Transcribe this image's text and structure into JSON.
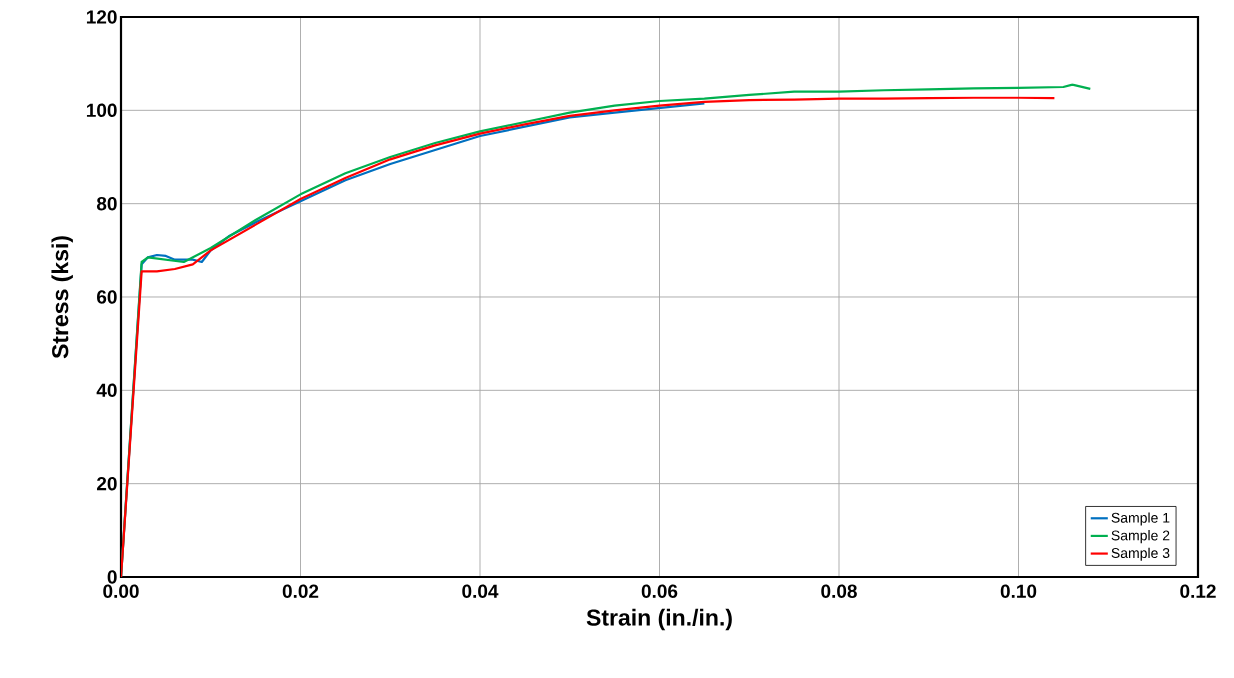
{
  "chart_data": {
    "type": "line",
    "xlabel": "Strain (in./in.)",
    "ylabel": "Stress (ksi)",
    "xlim": [
      0,
      0.12
    ],
    "ylim": [
      0,
      120
    ],
    "xticks": [
      {
        "value": 0,
        "label": "0.00"
      },
      {
        "value": 0.02,
        "label": "0.02"
      },
      {
        "value": 0.04,
        "label": "0.04"
      },
      {
        "value": 0.06,
        "label": "0.06"
      },
      {
        "value": 0.08,
        "label": "0.08"
      },
      {
        "value": 0.1,
        "label": "0.10"
      },
      {
        "value": 0.12,
        "label": "0.12"
      }
    ],
    "yticks": [
      0,
      20,
      40,
      60,
      80,
      100,
      120
    ],
    "grid": true,
    "legend": "bottom right",
    "marker": "none",
    "line_style": "solid",
    "series": [
      {
        "name": "Sample 1",
        "color": "#0070c0",
        "x": [
          0,
          0.0023,
          0.003,
          0.004,
          0.005,
          0.006,
          0.008,
          0.009,
          0.01,
          0.012,
          0.015,
          0.02,
          0.025,
          0.03,
          0.035,
          0.04,
          0.045,
          0.05,
          0.055,
          0.06,
          0.065
        ],
        "values": [
          0,
          67,
          68.5,
          69,
          68.8,
          68,
          68,
          67.5,
          70,
          73,
          76,
          80.5,
          85,
          88.5,
          91.5,
          94.5,
          96.5,
          98.5,
          99.5,
          100.5,
          101.5
        ]
      },
      {
        "name": "Sample 2",
        "color": "#00b050",
        "x": [
          0,
          0.0023,
          0.003,
          0.005,
          0.007,
          0.01,
          0.015,
          0.02,
          0.025,
          0.03,
          0.035,
          0.04,
          0.045,
          0.05,
          0.055,
          0.06,
          0.065,
          0.07,
          0.075,
          0.08,
          0.085,
          0.09,
          0.095,
          0.1,
          0.105,
          0.106,
          0.108
        ],
        "values": [
          0,
          67.5,
          68.5,
          68,
          67.5,
          70.5,
          76.5,
          82,
          86.5,
          90,
          93,
          95.5,
          97.5,
          99.5,
          101,
          102,
          102.5,
          103.3,
          104,
          104,
          104.3,
          104.5,
          104.7,
          104.8,
          105,
          105.5,
          104.6
        ]
      },
      {
        "name": "Sample 3",
        "color": "#ff0000",
        "x": [
          0,
          0.0023,
          0.004,
          0.006,
          0.008,
          0.01,
          0.015,
          0.02,
          0.025,
          0.03,
          0.035,
          0.04,
          0.045,
          0.05,
          0.055,
          0.06,
          0.065,
          0.07,
          0.075,
          0.08,
          0.085,
          0.09,
          0.095,
          0.1,
          0.104
        ],
        "values": [
          0,
          65.5,
          65.5,
          66,
          67,
          70,
          75.5,
          81,
          85.5,
          89.5,
          92.5,
          95,
          97,
          98.8,
          100,
          101,
          101.8,
          102.2,
          102.3,
          102.5,
          102.5,
          102.6,
          102.7,
          102.7,
          102.6
        ]
      }
    ]
  }
}
